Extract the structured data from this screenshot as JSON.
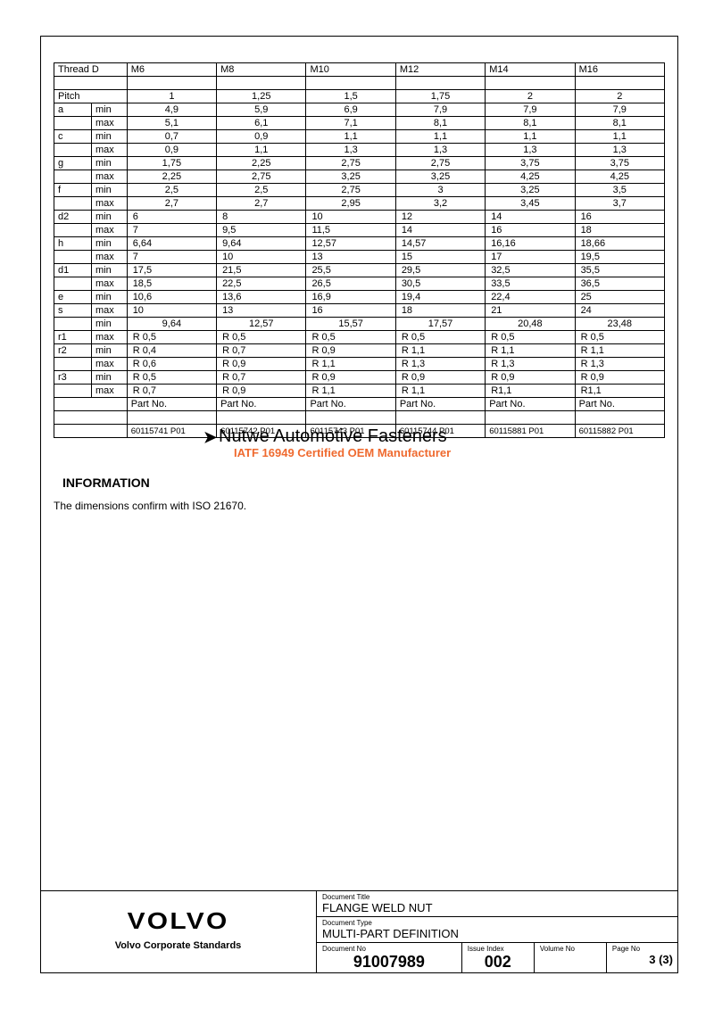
{
  "table": {
    "header_label": "Thread   D",
    "columns": [
      "M6",
      "M8",
      "M10",
      "M12",
      "M14",
      "M16"
    ],
    "rows": [
      {
        "p": "Pitch",
        "s": "",
        "v": [
          "1",
          "1,25",
          "1,5",
          "1,75",
          "2",
          "2"
        ],
        "align": "c"
      },
      {
        "p": "a",
        "s": "min",
        "v": [
          "4,9",
          "5,9",
          "6,9",
          "7,9",
          "7,9",
          "7,9"
        ],
        "align": "c"
      },
      {
        "p": "",
        "s": "max",
        "v": [
          "5,1",
          "6,1",
          "7,1",
          "8,1",
          "8,1",
          "8,1"
        ],
        "align": "c"
      },
      {
        "p": "c",
        "s": "min",
        "v": [
          "0,7",
          "0,9",
          "1,1",
          "1,1",
          "1,1",
          "1,1"
        ],
        "align": "c"
      },
      {
        "p": "",
        "s": "max",
        "v": [
          "0,9",
          "1,1",
          "1,3",
          "1,3",
          "1,3",
          "1,3"
        ],
        "align": "c"
      },
      {
        "p": "g",
        "s": "min",
        "v": [
          "1,75",
          "2,25",
          "2,75",
          "2,75",
          "3,75",
          "3,75"
        ],
        "align": "c"
      },
      {
        "p": "",
        "s": "max",
        "v": [
          "2,25",
          "2,75",
          "3,25",
          "3,25",
          "4,25",
          "4,25"
        ],
        "align": "c"
      },
      {
        "p": "f",
        "s": "min",
        "v": [
          "2,5",
          "2,5",
          "2,75",
          "3",
          "3,25",
          "3,5"
        ],
        "align": "c"
      },
      {
        "p": "",
        "s": "max",
        "v": [
          "2,7",
          "2,7",
          "2,95",
          "3,2",
          "3,45",
          "3,7"
        ],
        "align": "c"
      },
      {
        "p": "d2",
        "s": "min",
        "v": [
          "6",
          "8",
          "10",
          "12",
          "14",
          "16"
        ],
        "align": "l"
      },
      {
        "p": "",
        "s": "max",
        "v": [
          "7",
          "9,5",
          "11,5",
          "14",
          "16",
          "18"
        ],
        "align": "l"
      },
      {
        "p": "h",
        "s": "min",
        "v": [
          "6,64",
          "9,64",
          "12,57",
          "14,57",
          "16,16",
          "18,66"
        ],
        "align": "l"
      },
      {
        "p": "",
        "s": "max",
        "v": [
          "7",
          "10",
          "13",
          "15",
          "17",
          "19,5"
        ],
        "align": "l"
      },
      {
        "p": "d1",
        "s": "min",
        "v": [
          "17,5",
          "21,5",
          "25,5",
          "29,5",
          "32,5",
          "35,5"
        ],
        "align": "l"
      },
      {
        "p": "",
        "s": "max",
        "v": [
          "18,5",
          "22,5",
          "26,5",
          "30,5",
          "33,5",
          "36,5"
        ],
        "align": "l"
      },
      {
        "p": "e",
        "s": "min",
        "v": [
          "10,6",
          "13,6",
          "16,9",
          "19,4",
          "22,4",
          "25"
        ],
        "align": "l"
      },
      {
        "p": "s",
        "s": "max",
        "v": [
          "10",
          "13",
          "16",
          "18",
          "21",
          "24"
        ],
        "align": "l"
      },
      {
        "p": "",
        "s": "min",
        "v": [
          "9,64",
          "12,57",
          "15,57",
          "17,57",
          "20,48",
          "23,48"
        ],
        "align": "c"
      },
      {
        "p": "r1",
        "s": "max",
        "v": [
          "R 0,5",
          "R 0,5",
          "R 0,5",
          "R 0,5",
          "R 0,5",
          "R 0,5"
        ],
        "align": "l"
      },
      {
        "p": "r2",
        "s": "min",
        "v": [
          "R 0,4",
          "R 0,7",
          "R 0,9",
          "R 1,1",
          "R 1,1",
          "R 1,1"
        ],
        "align": "l"
      },
      {
        "p": "",
        "s": "max",
        "v": [
          "R 0,6",
          "R 0,9",
          "R 1,1",
          "R 1,3",
          "R 1,3",
          "R 1,3"
        ],
        "align": "l"
      },
      {
        "p": "r3",
        "s": "min",
        "v": [
          "R 0,5",
          "R 0,7",
          "R 0,9",
          "R 0,9",
          "R 0,9",
          "R 0,9"
        ],
        "align": "l"
      },
      {
        "p": "",
        "s": "max",
        "v": [
          "R 0,7",
          "R 0,9",
          "R 1,1",
          "R 1,1",
          "R1,1",
          "R1,1"
        ],
        "align": "l"
      }
    ],
    "partno_label": "Part No.",
    "partnos": [
      "60115741 P01",
      "60115742 P01",
      "60115743 P01",
      "60115744 P01",
      "60115881 P01",
      "60115882 P01"
    ]
  },
  "watermark": {
    "line1": "Nutwe Automotive Fasteners",
    "line2": "IATF 16949 Certified OEM Manufacturer"
  },
  "info": {
    "heading": "INFORMATION",
    "text": "The dimensions confirm with ISO 21670."
  },
  "footer": {
    "brand": "VOLVO",
    "brand_sub": "Volvo Corporate Standards",
    "doc_title_label": "Document Title",
    "doc_title": "FLANGE WELD NUT",
    "doc_type_label": "Document Type",
    "doc_type": "MULTI-PART DEFINITION",
    "doc_no_label": "Document No",
    "doc_no": "91007989",
    "issue_label": "Issue Index",
    "issue": "002",
    "volume_label": "Volume No",
    "volume": "",
    "page_label": "Page No",
    "page": "3 (3)"
  }
}
